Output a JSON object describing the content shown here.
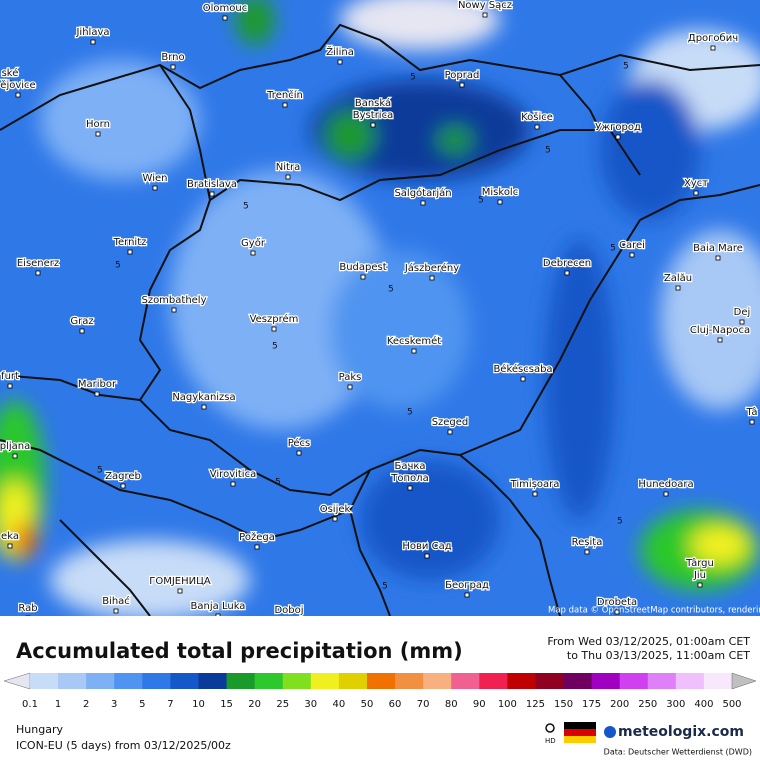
{
  "map": {
    "cities": [
      "Olomouc",
      "Nowy Sącz",
      "Jihlava",
      "Brno",
      "Žilina",
      "Poprad",
      "Дрогобич",
      "ské",
      "ějovice",
      "Trenčín",
      "Banská",
      "Bystrica",
      "Košice",
      "Ужгород",
      "Horn",
      "Nitra",
      "Wien",
      "Bratislava",
      "Salgótarján",
      "Miskolc",
      "Хуст",
      "Ternitz",
      "Győr",
      "Carei",
      "Baia Mare",
      "Eisenerz",
      "Budapest",
      "Jászberény",
      "Debrecen",
      "Zalău",
      "Szombathely",
      "Graz",
      "Veszprém",
      "Dej",
      "Kecskemét",
      "Cluj-Napoca",
      "furt",
      "Maribor",
      "Paks",
      "Békéscsaba",
      "Nagykanizsa",
      "pljana",
      "Pécs",
      "Szeged",
      "Tâ",
      "Zagreb",
      "Virovitica",
      "Бачка",
      "Топола",
      "Timișoara",
      "Hunedoara",
      "Osijek",
      "Požega",
      "Нови Сад",
      "Reșița",
      "Târgu",
      "Jiu",
      "ГОМЈЕНИЦА",
      "Bihać",
      "Banja Luka",
      "Doboj",
      "Београд",
      "Drobeta",
      "eka",
      "Rab"
    ],
    "contour_labels": [
      "5",
      "5",
      "5",
      "5",
      "5",
      "5",
      "5",
      "5",
      "5",
      "5",
      "5",
      "5",
      "5",
      "5"
    ],
    "attribution": "Map data © OpenStreetMap contributors, rendering GIScience Research Group @ Heidelberg University"
  },
  "footer": {
    "title": "Accumulated total precipitation (mm)",
    "period_from": "From Wed 03/12/2025, 01:00am CET",
    "period_to": "to Thu 03/13/2025, 11:00am CET",
    "legend": {
      "labels": [
        0.1,
        1,
        2,
        3,
        5,
        7,
        10,
        15,
        20,
        25,
        30,
        40,
        50,
        60,
        70,
        80,
        90,
        100,
        125,
        150,
        175,
        200,
        250,
        300,
        400,
        500
      ],
      "colors": [
        "#e6e6f2",
        "#c7dcf7",
        "#a8c8f5",
        "#7eb0f5",
        "#4f94f0",
        "#2f78e8",
        "#1457c8",
        "#0a3a9a",
        "#1a9a2a",
        "#2cc82c",
        "#80e020",
        "#f0f020",
        "#e0d000",
        "#f07000",
        "#f09040",
        "#f8b080",
        "#f06090",
        "#f02050",
        "#c00000",
        "#900020",
        "#700060",
        "#a000c0",
        "#d040f0",
        "#e080f8",
        "#f0c0fc",
        "#f8e8fc",
        "#c0c0c0"
      ]
    },
    "region": "Hungary",
    "model": "ICON-EU (5 days) from 03/12/2025/00z",
    "hd": "HD",
    "brand": "meteologix.com",
    "source": "Data: Deutscher Wetterdienst (DWD)"
  }
}
